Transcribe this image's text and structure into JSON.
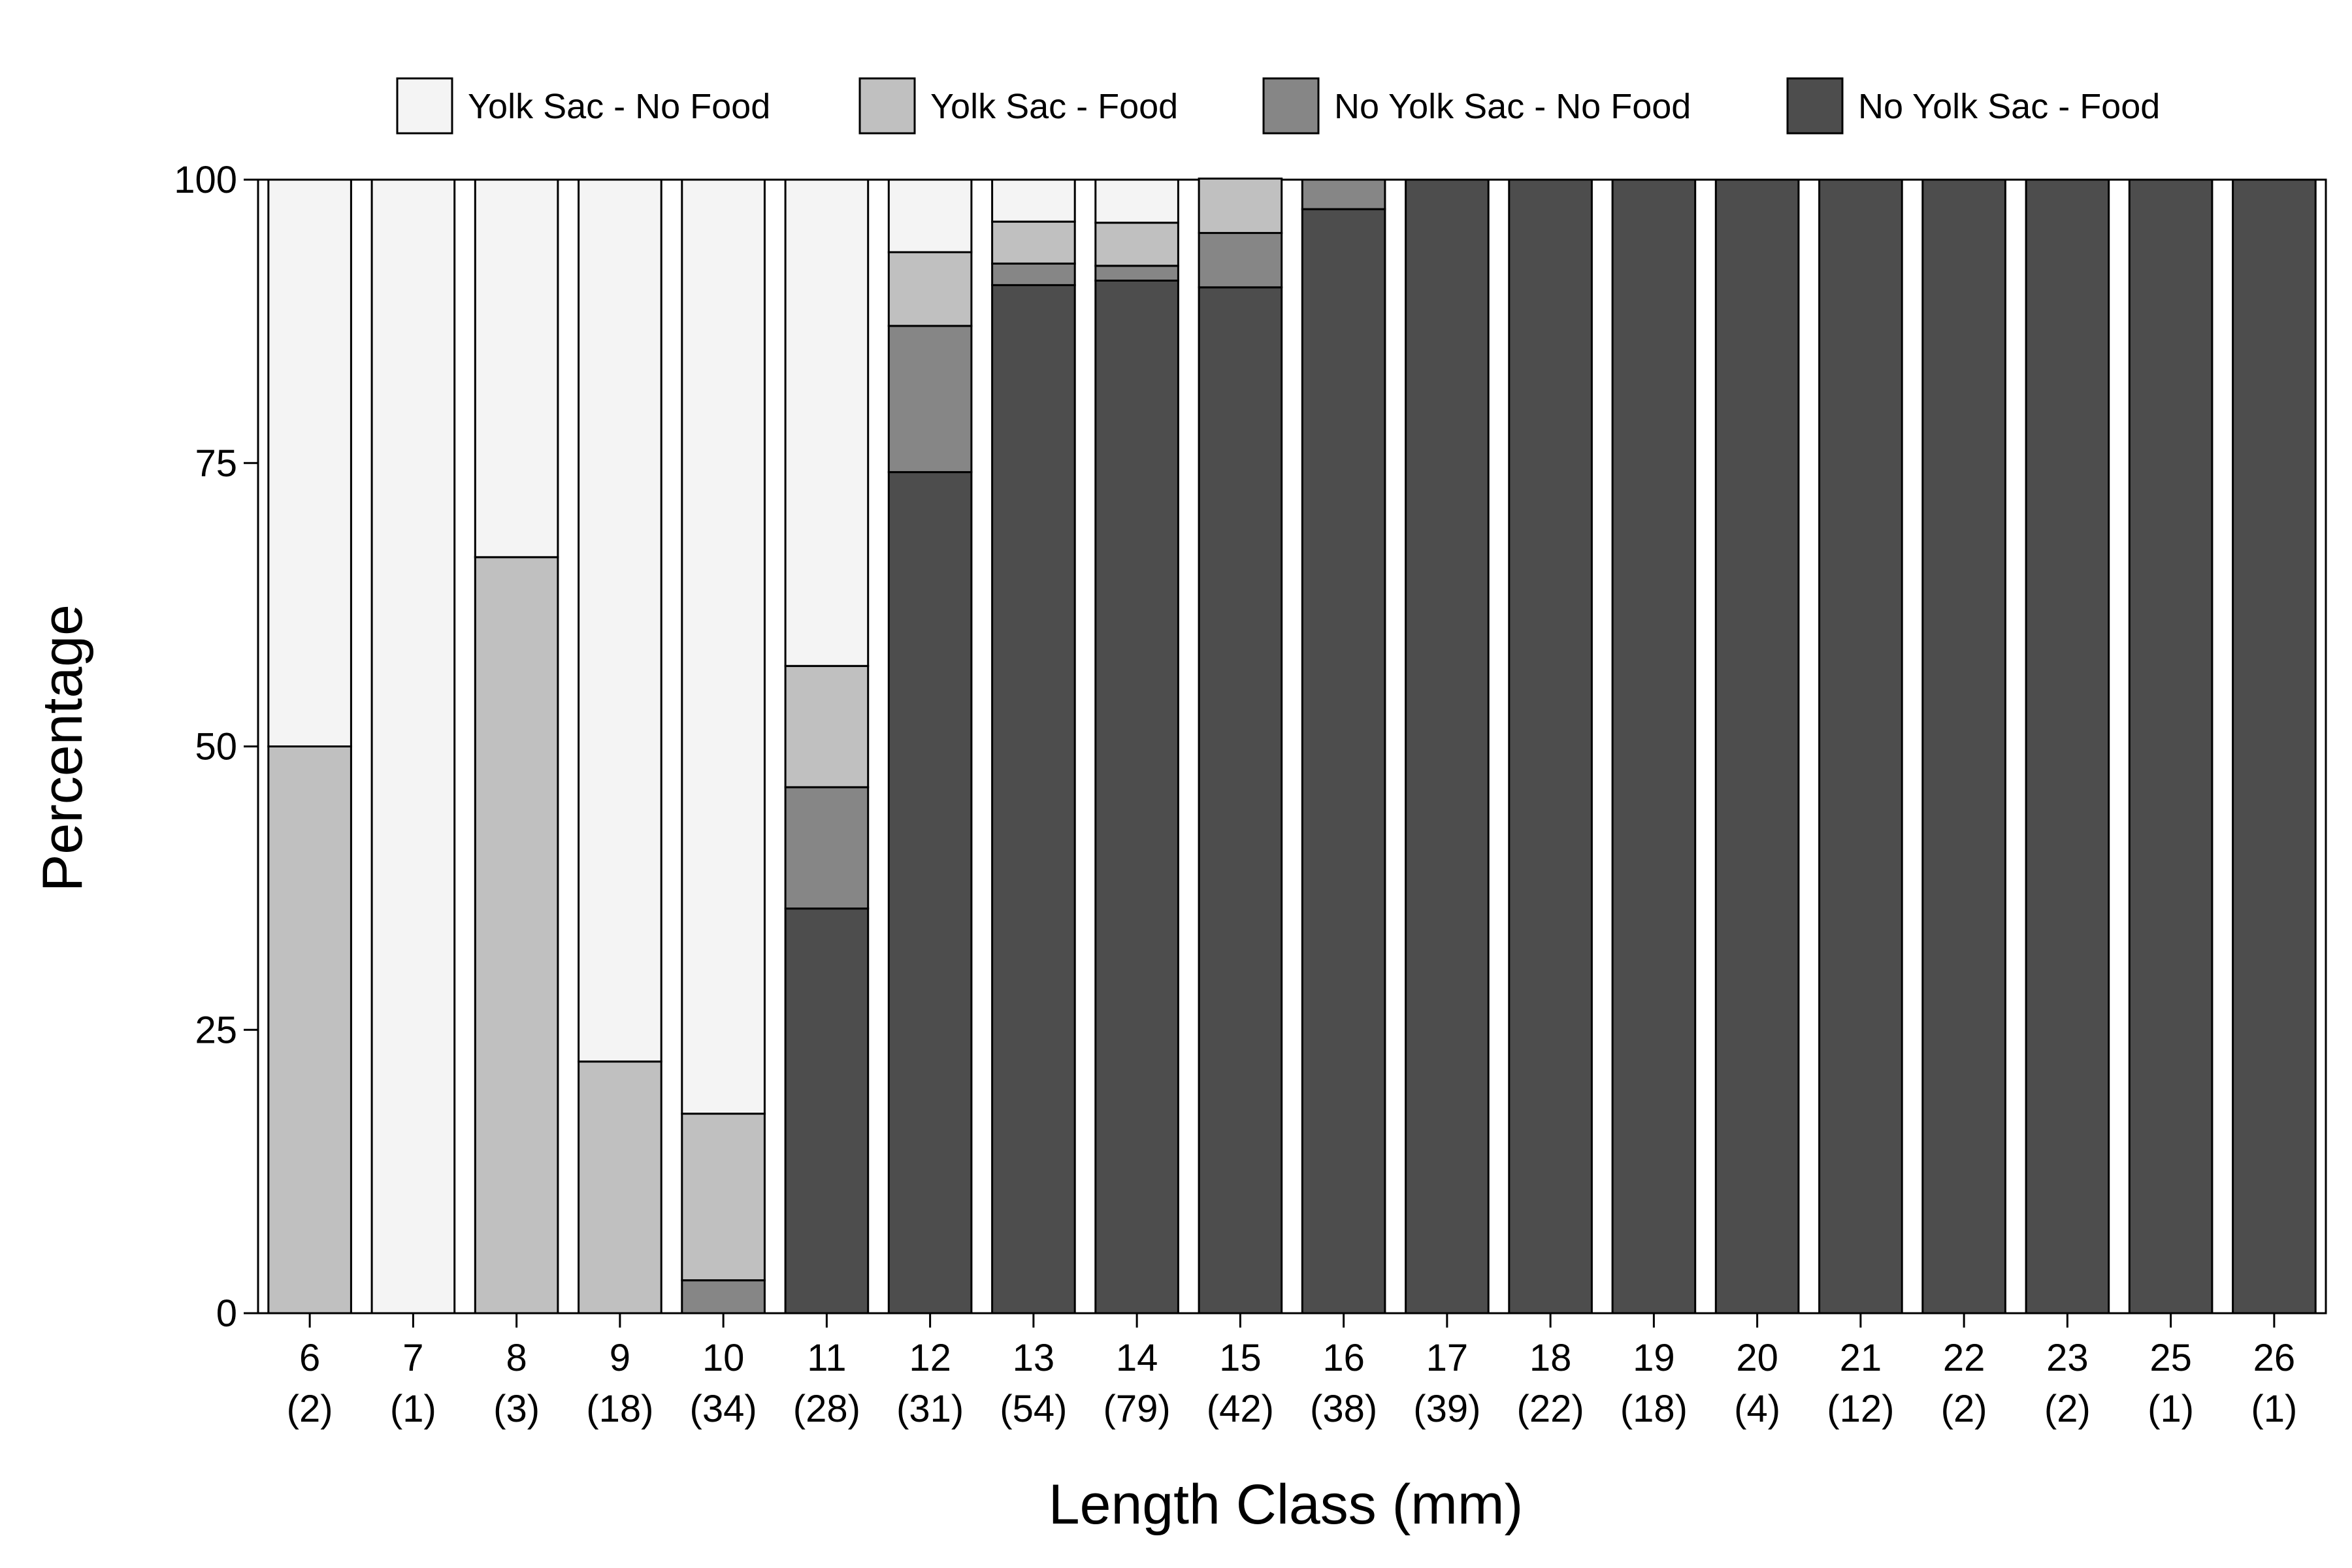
{
  "chart_data": {
    "type": "bar",
    "stacked": true,
    "title": "",
    "xlabel": "Length Class (mm)",
    "ylabel": "Percentage",
    "ylim": [
      0,
      100
    ],
    "yticks": [
      "0",
      "25",
      "50",
      "75",
      "100"
    ],
    "legend_position": "top",
    "categories": [
      "6",
      "7",
      "8",
      "9",
      "10",
      "11",
      "12",
      "13",
      "14",
      "15",
      "16",
      "17",
      "18",
      "19",
      "20",
      "21",
      "22",
      "23",
      "25",
      "26"
    ],
    "counts": [
      "(2)",
      "(1)",
      "(3)",
      "(18)",
      "(34)",
      "(28)",
      "(31)",
      "(54)",
      "(79)",
      "(42)",
      "(38)",
      "(39)",
      "(22)",
      "(18)",
      "(4)",
      "(12)",
      "(2)",
      "(2)",
      "(1)",
      "(1)"
    ],
    "series": [
      {
        "name": "No Yolk Sac - Food",
        "color": "#4d4d4d",
        "values": [
          0,
          0,
          0,
          0,
          0,
          35.7,
          74.2,
          90.7,
          91.1,
          90.5,
          97.4,
          100,
          100,
          100,
          100,
          100,
          100,
          100,
          100,
          100
        ]
      },
      {
        "name": "No Yolk Sac - No Food",
        "color": "#868686",
        "values": [
          0,
          0,
          0,
          0,
          2.9,
          10.7,
          12.9,
          1.9,
          1.3,
          4.8,
          2.6,
          0,
          0,
          0,
          0,
          0,
          0,
          0,
          0,
          0
        ]
      },
      {
        "name": "Yolk Sac - Food",
        "color": "#c0c0c0",
        "values": [
          50,
          0,
          66.7,
          22.2,
          14.7,
          10.7,
          6.5,
          3.7,
          3.8,
          4.8,
          0,
          0,
          0,
          0,
          0,
          0,
          0,
          0,
          0,
          0
        ]
      },
      {
        "name": "Yolk Sac - No Food",
        "color": "#f4f4f4",
        "values": [
          50,
          100,
          33.3,
          77.8,
          82.4,
          42.9,
          6.4,
          3.7,
          3.8,
          0,
          0,
          0,
          0,
          0,
          0,
          0,
          0,
          0,
          0,
          0
        ]
      }
    ],
    "legend_order": [
      "Yolk Sac - No Food",
      "Yolk Sac - Food",
      "No Yolk Sac - No Food",
      "No Yolk Sac - Food"
    ]
  }
}
